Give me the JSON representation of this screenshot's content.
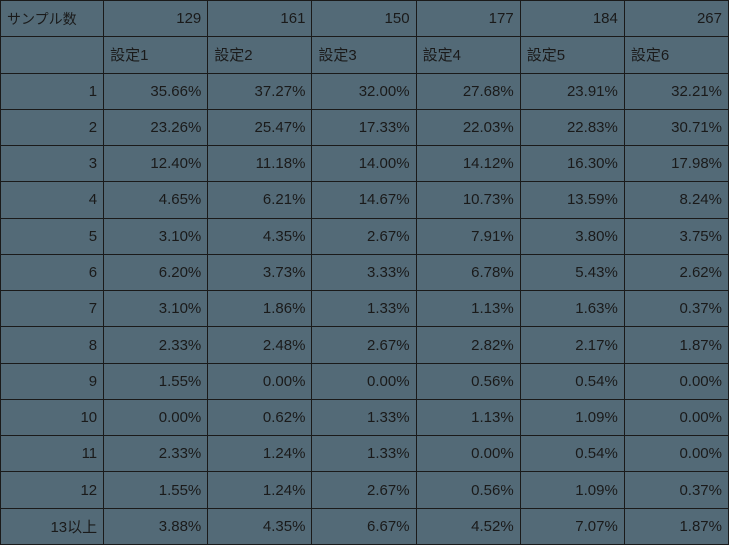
{
  "table": {
    "background_color": "#536a77",
    "border_color": "#1a1a1a",
    "text_color": "#1a1a1a",
    "font_size": 15,
    "sample_label": "サンプル数",
    "sample_counts": [
      "129",
      "161",
      "150",
      "177",
      "184",
      "267"
    ],
    "setting_headers": [
      "設定1",
      "設定2",
      "設定3",
      "設定4",
      "設定5",
      "設定6"
    ],
    "row_labels": [
      "1",
      "2",
      "3",
      "4",
      "5",
      "6",
      "7",
      "8",
      "9",
      "10",
      "11",
      "12",
      "13以上"
    ],
    "rows": [
      [
        "35.66%",
        "37.27%",
        "32.00%",
        "27.68%",
        "23.91%",
        "32.21%"
      ],
      [
        "23.26%",
        "25.47%",
        "17.33%",
        "22.03%",
        "22.83%",
        "30.71%"
      ],
      [
        "12.40%",
        "11.18%",
        "14.00%",
        "14.12%",
        "16.30%",
        "17.98%"
      ],
      [
        "4.65%",
        "6.21%",
        "14.67%",
        "10.73%",
        "13.59%",
        "8.24%"
      ],
      [
        "3.10%",
        "4.35%",
        "2.67%",
        "7.91%",
        "3.80%",
        "3.75%"
      ],
      [
        "6.20%",
        "3.73%",
        "3.33%",
        "6.78%",
        "5.43%",
        "2.62%"
      ],
      [
        "3.10%",
        "1.86%",
        "1.33%",
        "1.13%",
        "1.63%",
        "0.37%"
      ],
      [
        "2.33%",
        "2.48%",
        "2.67%",
        "2.82%",
        "2.17%",
        "1.87%"
      ],
      [
        "1.55%",
        "0.00%",
        "0.00%",
        "0.56%",
        "0.54%",
        "0.00%"
      ],
      [
        "0.00%",
        "0.62%",
        "1.33%",
        "1.13%",
        "1.09%",
        "0.00%"
      ],
      [
        "2.33%",
        "1.24%",
        "1.33%",
        "0.00%",
        "0.54%",
        "0.00%"
      ],
      [
        "1.55%",
        "1.24%",
        "2.67%",
        "0.56%",
        "1.09%",
        "0.37%"
      ],
      [
        "3.88%",
        "4.35%",
        "6.67%",
        "4.52%",
        "7.07%",
        "1.87%"
      ]
    ]
  }
}
